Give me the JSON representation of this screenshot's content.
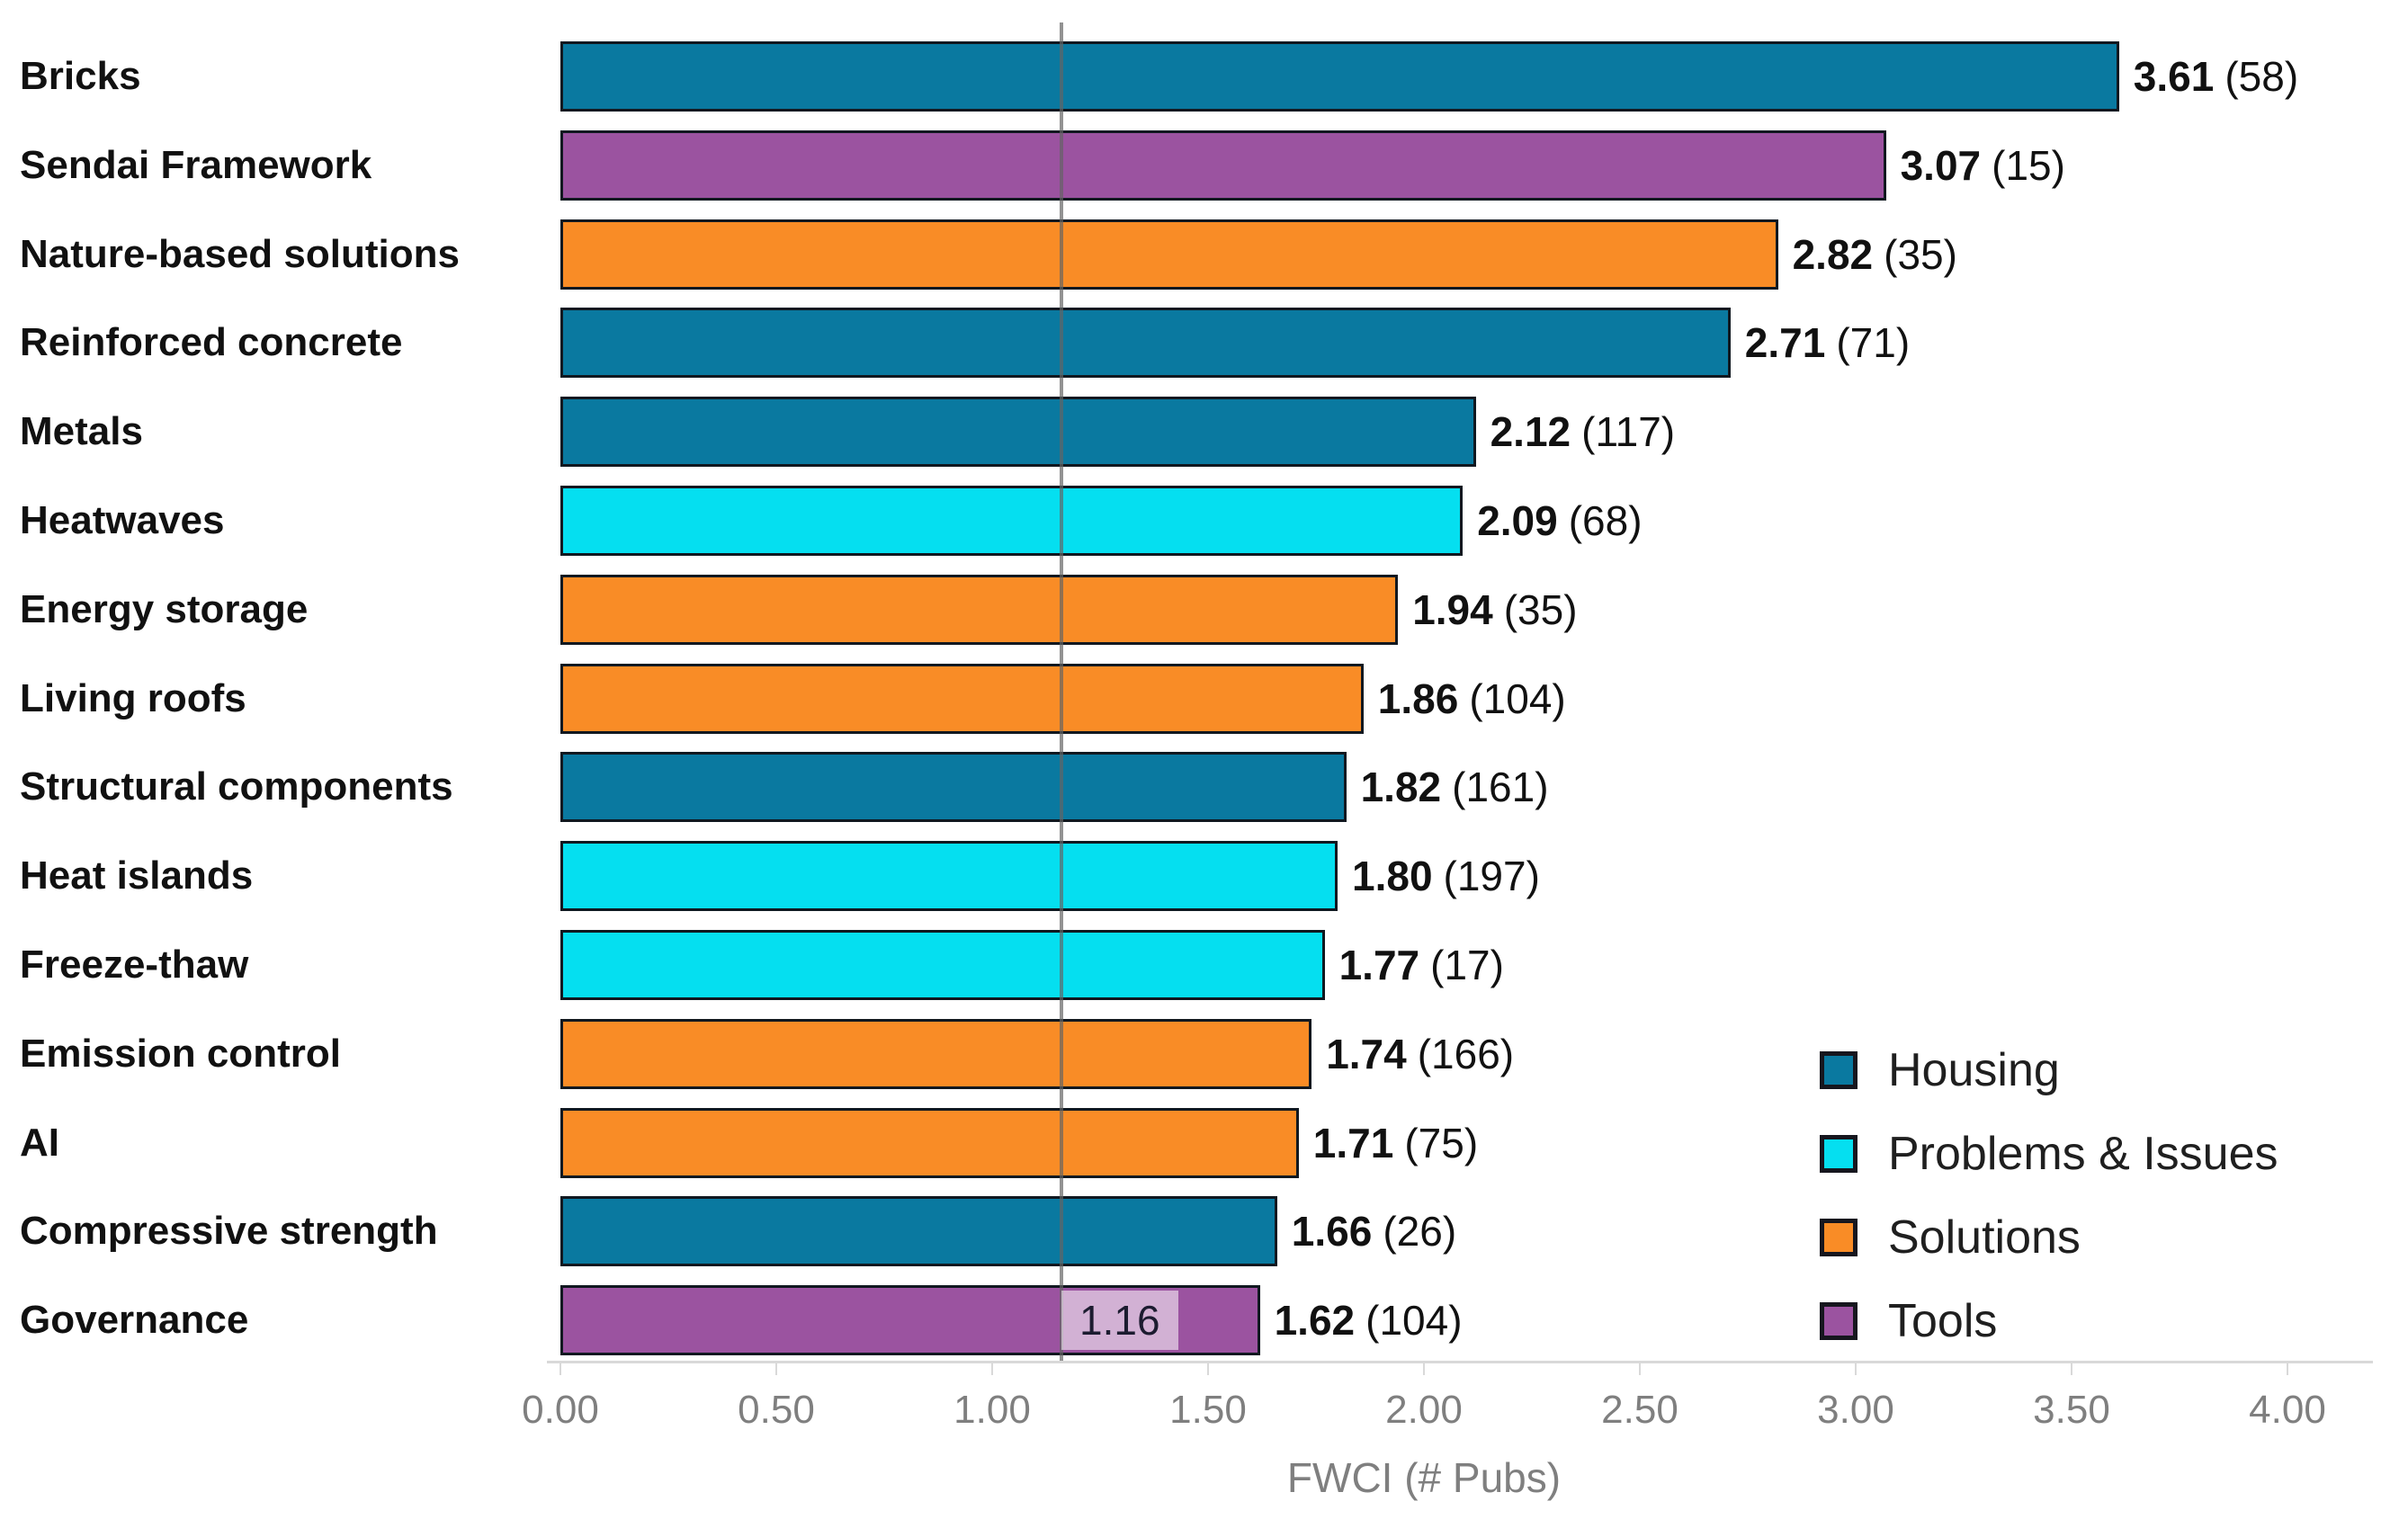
{
  "chart_data": {
    "type": "bar",
    "orientation": "horizontal",
    "title": "",
    "xlabel": "FWCI (# Pubs)",
    "xlim": [
      0,
      4
    ],
    "xtick_labels": [
      "0.00",
      "0.50",
      "1.00",
      "1.50",
      "2.00",
      "2.50",
      "3.00",
      "3.50",
      "4.00"
    ],
    "grid": false,
    "legend_position": "lower right",
    "reference_line": {
      "value": 1.16,
      "label": "1.16"
    },
    "legend": [
      {
        "label": "Housing",
        "color": "#0A79A0"
      },
      {
        "label": "Problems & Issues",
        "color": "#05DFF0"
      },
      {
        "label": "Solutions",
        "color": "#F98C26"
      },
      {
        "label": "Tools",
        "color": "#9B53A0"
      }
    ],
    "bars": [
      {
        "label": "Bricks",
        "group": "Housing",
        "value": 3.61,
        "value_display": "3.61",
        "pubs": 58,
        "pubs_display": "(58)"
      },
      {
        "label": "Sendai Framework",
        "group": "Tools",
        "value": 3.07,
        "value_display": "3.07",
        "pubs": 15,
        "pubs_display": "(15)"
      },
      {
        "label": "Nature-based solutions",
        "group": "Solutions",
        "value": 2.82,
        "value_display": "2.82",
        "pubs": 35,
        "pubs_display": "(35)"
      },
      {
        "label": "Reinforced concrete",
        "group": "Housing",
        "value": 2.71,
        "value_display": "2.71",
        "pubs": 71,
        "pubs_display": "(71)"
      },
      {
        "label": "Metals",
        "group": "Housing",
        "value": 2.12,
        "value_display": "2.12",
        "pubs": 117,
        "pubs_display": "(117)"
      },
      {
        "label": "Heatwaves",
        "group": "Problems & Issues",
        "value": 2.09,
        "value_display": "2.09",
        "pubs": 68,
        "pubs_display": "(68)"
      },
      {
        "label": "Energy storage",
        "group": "Solutions",
        "value": 1.94,
        "value_display": "1.94",
        "pubs": 35,
        "pubs_display": "(35)"
      },
      {
        "label": "Living roofs",
        "group": "Solutions",
        "value": 1.86,
        "value_display": "1.86",
        "pubs": 104,
        "pubs_display": "(104)"
      },
      {
        "label": "Structural components",
        "group": "Housing",
        "value": 1.82,
        "value_display": "1.82",
        "pubs": 161,
        "pubs_display": "(161)"
      },
      {
        "label": "Heat islands",
        "group": "Problems & Issues",
        "value": 1.8,
        "value_display": "1.80",
        "pubs": 197,
        "pubs_display": "(197)"
      },
      {
        "label": "Freeze-thaw",
        "group": "Problems & Issues",
        "value": 1.77,
        "value_display": "1.77",
        "pubs": 17,
        "pubs_display": "(17)"
      },
      {
        "label": "Emission control",
        "group": "Solutions",
        "value": 1.74,
        "value_display": "1.74",
        "pubs": 166,
        "pubs_display": "(166)"
      },
      {
        "label": "AI",
        "group": "Solutions",
        "value": 1.71,
        "value_display": "1.71",
        "pubs": 75,
        "pubs_display": "(75)"
      },
      {
        "label": "Compressive strength",
        "group": "Housing",
        "value": 1.66,
        "value_display": "1.66",
        "pubs": 26,
        "pubs_display": "(26)"
      },
      {
        "label": "Governance",
        "group": "Tools",
        "value": 1.62,
        "value_display": "1.62",
        "pubs": 104,
        "pubs_display": "(104)"
      }
    ]
  }
}
